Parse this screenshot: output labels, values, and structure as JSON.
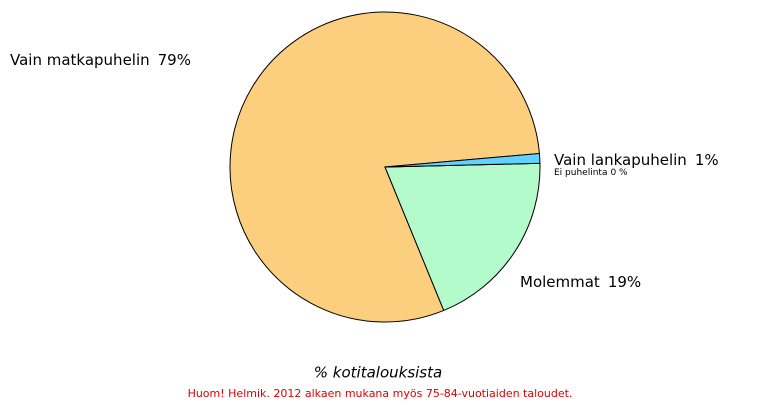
{
  "chart_data": {
    "type": "pie",
    "categories": [
      "Vain matkapuhelin",
      "Molemmat",
      "Ei puhelinta",
      "Vain lankapuhelin"
    ],
    "values": [
      79,
      19,
      0,
      1
    ],
    "value_labels": [
      "79%",
      "19%",
      "0 %",
      "1%"
    ],
    "colors": [
      "#fccf7e",
      "#b3fbca",
      "#2f9fd6",
      "#5fd2ff"
    ],
    "xlabel": "% kotitalouksista",
    "note": "Huom! Helmik. 2012 alkaen mukana myös 75-84-vuotiaiden taloudet."
  }
}
